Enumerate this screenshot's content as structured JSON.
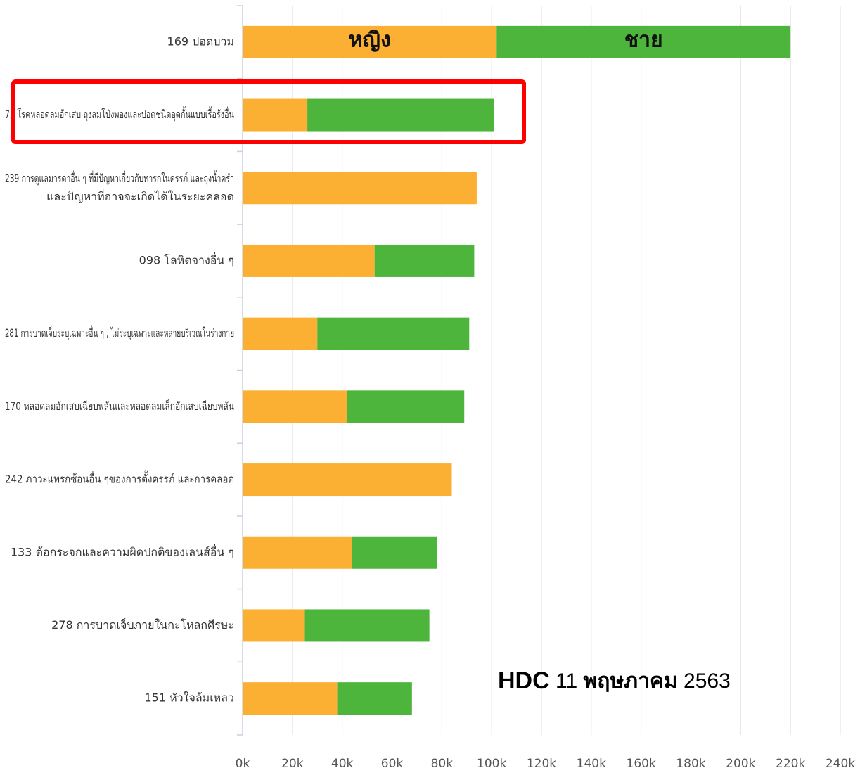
{
  "chart_data": {
    "type": "stacked-barh",
    "categories": [
      "169 ปอดบวม",
      "75 โรคหลอดลมอักเสบ ถุงลมโป่งพองและปอดชนิดอุดกั้นแบบเรื้อรังอื่น",
      [
        "239 การดูแลมารดาอื่น ๆ ที่มีปัญหาเกี่ยวกับทารกในครรภ์ และถุงน้ำคร่ำ",
        "และปัญหาที่อาจจะเกิดได้ในระยะคลอด"
      ],
      "098 โลหิตจางอื่น ๆ",
      "281 การบาดเจ็บระบุเฉพาะอื่น ๆ , ไม่ระบุเฉพาะและหลายบริเวณในร่างกาย",
      "170 หลอดลมอักเสบเฉียบพลันและหลอดลมเล็กอักเสบเฉียบพลัน",
      "242 ภาวะแทรกซ้อนอื่น ๆของการตั้งครรภ์ และการคลอด",
      "133 ต้อกระจกและความผิดปกติของเลนส์อื่น ๆ",
      "278 การบาดเจ็บภายในกะโหลกศีรษะ",
      "151 หัวใจล้มเหลว"
    ],
    "series": [
      {
        "name": "หญิง",
        "color": "#fbb034",
        "values": [
          102,
          26,
          94,
          53,
          30,
          42,
          84,
          44,
          25,
          38
        ]
      },
      {
        "name": "ชาย",
        "color": "#4db53c",
        "values": [
          118,
          75,
          0,
          40,
          61,
          47,
          0,
          34,
          50,
          30
        ]
      }
    ],
    "xlim": [
      0,
      240
    ],
    "xticks": [
      {
        "value": 0,
        "label": "0k"
      },
      {
        "value": 20,
        "label": "20k"
      },
      {
        "value": 40,
        "label": "40k"
      },
      {
        "value": 60,
        "label": "60k"
      },
      {
        "value": 80,
        "label": "80k"
      },
      {
        "value": 100,
        "label": "100k"
      },
      {
        "value": 120,
        "label": "120k"
      },
      {
        "value": 140,
        "label": "140k"
      },
      {
        "value": 160,
        "label": "160k"
      },
      {
        "value": 180,
        "label": "180k"
      },
      {
        "value": 200,
        "label": "200k"
      },
      {
        "value": 220,
        "label": "220k"
      },
      {
        "value": 240,
        "label": "240k"
      }
    ],
    "grid": true,
    "annotation": [
      "HDC",
      "11",
      "พฤษภาคม",
      "2563"
    ]
  }
}
